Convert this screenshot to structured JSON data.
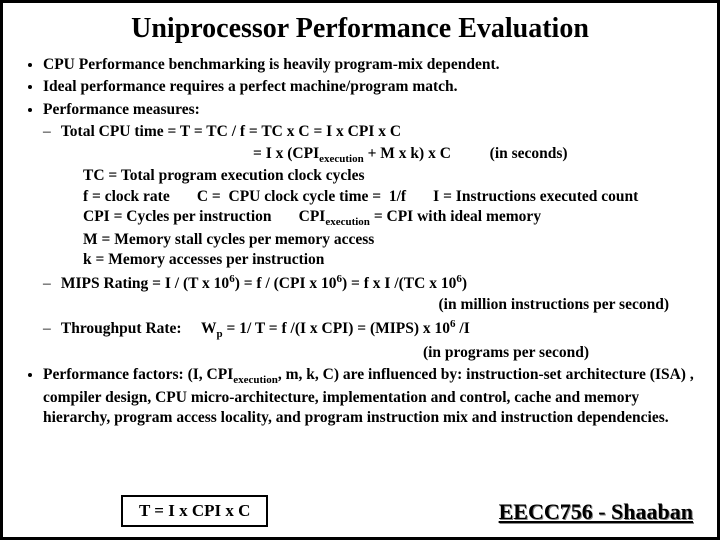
{
  "title": "Uniprocessor Performance Evaluation",
  "bullets": {
    "b1": "CPU Performance benchmarking is heavily program-mix dependent.",
    "b2": "Ideal performance requires a perfect machine/program match.",
    "b3": "Performance measures:",
    "b4_a": "Performance factors: (I, CPI",
    "b4_sub": "execution",
    "b4_b": ", m, k, C) are influenced by: instruction-set architecture (ISA) , compiler design, CPU micro-architecture, implementation and control, cache and memory hierarchy, program access locality, and program instruction mix and instruction dependencies."
  },
  "cpu_time": {
    "line1_a": "Total CPU time =  T = TC / f  = TC x C  = I x CPI x C",
    "line2_a": "=  I  x (CPI",
    "line2_sub": "execution",
    "line2_b": " + M x k) x C",
    "line2_note": "(in seconds)"
  },
  "defs": {
    "d1": "TC = Total program execution clock cycles",
    "d2": "f = clock rate       C =  CPU clock cycle time =  1/f       I = Instructions executed count",
    "d3_a": "CPI = Cycles per instruction       CPI",
    "d3_sub": "execution",
    "d3_b": " =  CPI with ideal memory",
    "d4": "M = Memory stall cycles per memory access",
    "d5": " k = Memory accesses per instruction"
  },
  "mips": {
    "line_a": "MIPS Rating = I  / (T x 10",
    "sup6a": "6",
    "line_b": ") =  f / (CPI x 10",
    "sup6b": "6",
    "line_c": ") = f x I /(TC x 10",
    "sup6c": "6",
    "line_d": ")",
    "note": "(in million instructions per second)"
  },
  "throughput": {
    "label": "Throughput Rate:",
    "formula_a": "W",
    "sub_p": "p",
    "formula_b": " = 1/ T =  f /(I x CPI)  = (MIPS) x 10",
    "sup6": "6",
    "formula_c": " /I",
    "note": "(in programs per second)"
  },
  "footer": {
    "formula": "T =  I  x  CPI   x C",
    "course": "EECC756 - Shaaban"
  },
  "dash": "–"
}
